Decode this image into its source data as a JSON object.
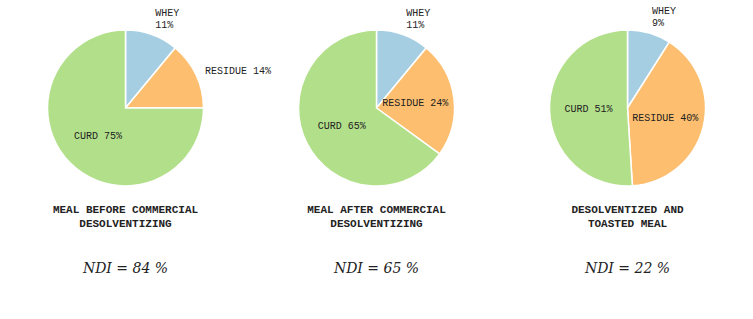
{
  "chart_data": [
    {
      "type": "pie",
      "title": "MEAL BEFORE COMMERCIAL\nDESOLVENTIZING",
      "subtitle": "NDI = 84 %",
      "values": [
        11,
        14,
        75
      ],
      "value_labels": [
        "WHEY\n11%",
        "RESIDUE 14%",
        "CURD 75%"
      ],
      "data_labels": true
    },
    {
      "type": "pie",
      "title": "MEAL AFTER COMMERCIAL\nDESOLVENTIZING",
      "subtitle": "NDI = 65 %",
      "values": [
        11,
        24,
        65
      ],
      "value_labels": [
        "WHEY\n11%",
        "RESIDUE 24%",
        "CURD 65%"
      ],
      "data_labels": true
    },
    {
      "type": "pie",
      "title": "DESOLVENTIZED AND\nTOASTED MEAL",
      "subtitle": "NDI = 22 %",
      "values": [
        9,
        40,
        51
      ],
      "value_labels": [
        "WHEY\n9%",
        "RESIDUE 40%",
        "CURD 51%"
      ],
      "data_labels": true
    }
  ]
}
